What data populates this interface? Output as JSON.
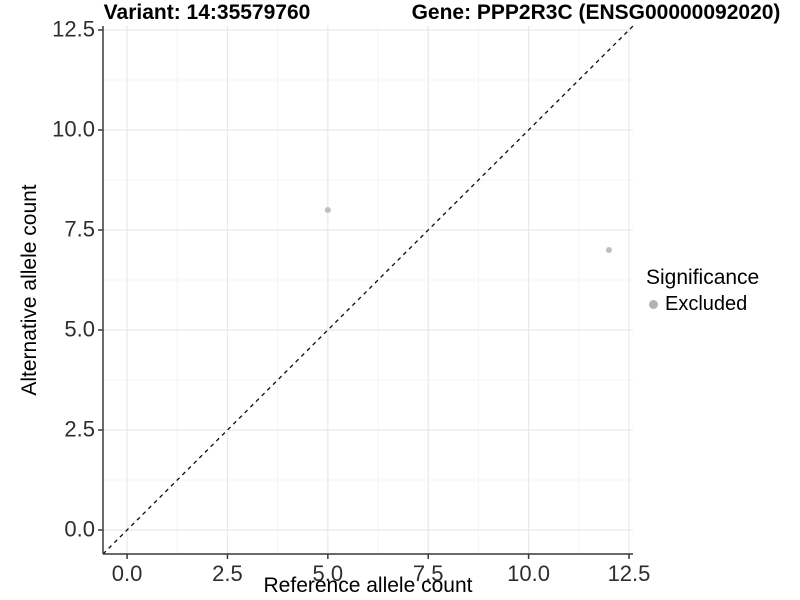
{
  "title": {
    "left": "Variant: 14:35579760",
    "right": "Gene: PPP2R3C (ENSG00000092020)"
  },
  "legend": {
    "title": "Significance",
    "items": [
      {
        "label": "Excluded",
        "color": "#b3b3b3"
      }
    ]
  },
  "colors": {
    "point": "#bfbfbf",
    "grid_major": "#e9e9e9",
    "grid_minor": "#f4f4f4",
    "axis_line": "#383838",
    "tick_mark": "#383838",
    "reference_line": "#0a0a0a",
    "panel_background": "#ffffff"
  },
  "chart_data": {
    "type": "scatter",
    "title": "Variant: 14:35579760    Gene: PPP2R3C (ENSG00000092020)",
    "xlabel": "Reference allele count",
    "ylabel": "Alternative allele count",
    "xlim": [
      -0.6,
      12.6
    ],
    "ylim": [
      -0.6,
      12.6
    ],
    "x_ticks": {
      "values": [
        0,
        2.5,
        5,
        7.5,
        10,
        12.5
      ],
      "labels": [
        "0.0",
        "2.5",
        "5.0",
        "7.5",
        "10.0",
        "12.5"
      ]
    },
    "y_ticks": {
      "values": [
        0,
        2.5,
        5,
        7.5,
        10,
        12.5
      ],
      "labels": [
        "0.0",
        "2.5",
        "5.0",
        "7.5",
        "10.0",
        "12.5"
      ]
    },
    "grid": {
      "major": [
        0,
        2.5,
        5,
        7.5,
        10,
        12.5
      ],
      "minor": [
        1.25,
        3.75,
        6.25,
        8.75,
        11.25
      ]
    },
    "series": [
      {
        "name": "Excluded",
        "color": "#bfbfbf",
        "points": [
          {
            "x": 5,
            "y": 8
          },
          {
            "x": 12,
            "y": 7
          }
        ]
      }
    ],
    "reference_line": {
      "slope": 1,
      "intercept": 0,
      "style": "dashed"
    },
    "legend_position": "right"
  }
}
